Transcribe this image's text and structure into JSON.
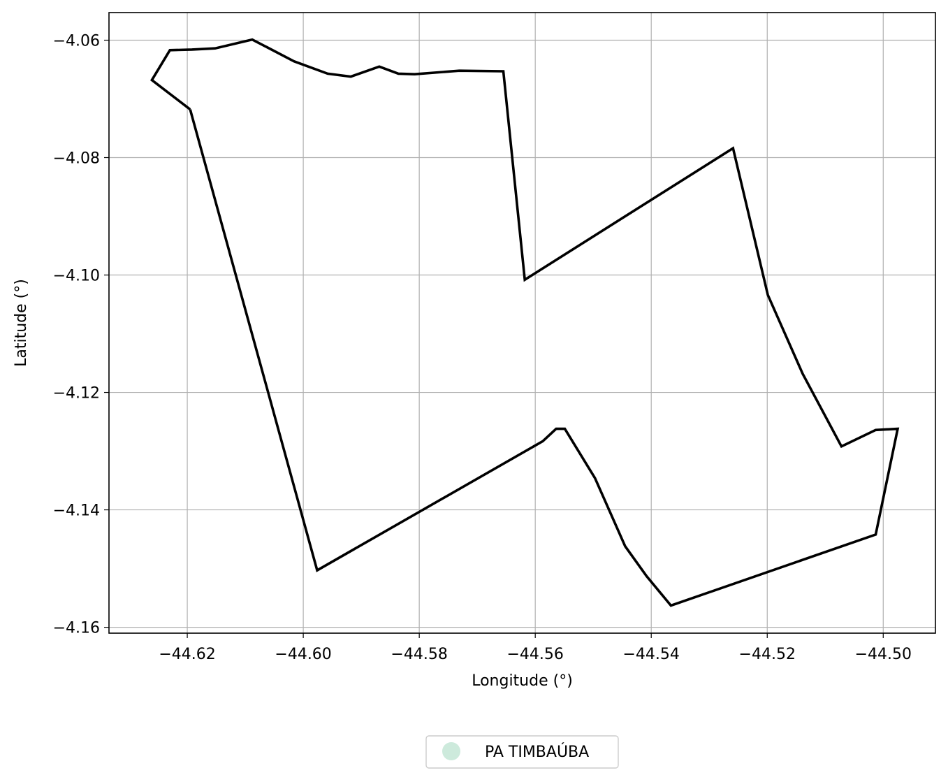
{
  "chart_data": {
    "type": "line",
    "title": "",
    "xlabel": "Longitude (°)",
    "ylabel": "Latitude (°)",
    "xlim": [
      -44.6335,
      -44.491
    ],
    "ylim": [
      -4.161,
      -4.0553
    ],
    "xticks": [
      -44.62,
      -44.6,
      -44.58,
      -44.56,
      -44.54,
      -44.52,
      -44.5
    ],
    "xtick_labels": [
      "−44.62",
      "−44.60",
      "−44.58",
      "−44.56",
      "−44.54",
      "−44.52",
      "−44.50"
    ],
    "yticks": [
      -4.06,
      -4.08,
      -4.1,
      -4.12,
      -4.14,
      -4.16
    ],
    "ytick_labels": [
      "−4.06",
      "−4.08",
      "−4.10",
      "−4.12",
      "−4.14",
      "−4.16"
    ],
    "grid": true,
    "legend_position": "bottom-center",
    "series": [
      {
        "name": "PA TIMBAÚBA",
        "line_color": "#000000",
        "marker_color": "#cdeadc",
        "x": [
          -44.6195,
          -44.6261,
          -44.623,
          -44.6192,
          -44.6152,
          -44.6088,
          -44.6016,
          -44.5958,
          -44.5918,
          -44.5869,
          -44.5836,
          -44.5808,
          -44.5731,
          -44.5655,
          -44.5618,
          -44.5259,
          -44.5199,
          -44.5139,
          -44.5072,
          -44.5013,
          -44.4975,
          -44.5013,
          -44.5366,
          -44.5408,
          -44.5445,
          -44.5497,
          -44.5549,
          -44.5564,
          -44.5587,
          -44.5976,
          -44.6195
        ],
        "y": [
          -4.0718,
          -4.0668,
          -4.0617,
          -4.0616,
          -4.0614,
          -4.0599,
          -4.0636,
          -4.0657,
          -4.0662,
          -4.0645,
          -4.0657,
          -4.0658,
          -4.0652,
          -4.0653,
          -4.1008,
          -4.0784,
          -4.1034,
          -4.1168,
          -4.1292,
          -4.1264,
          -4.1262,
          -4.1442,
          -4.1563,
          -4.1513,
          -4.1462,
          -4.1346,
          -4.1262,
          -4.1262,
          -4.1283,
          -4.1503,
          -4.0718
        ]
      }
    ]
  }
}
